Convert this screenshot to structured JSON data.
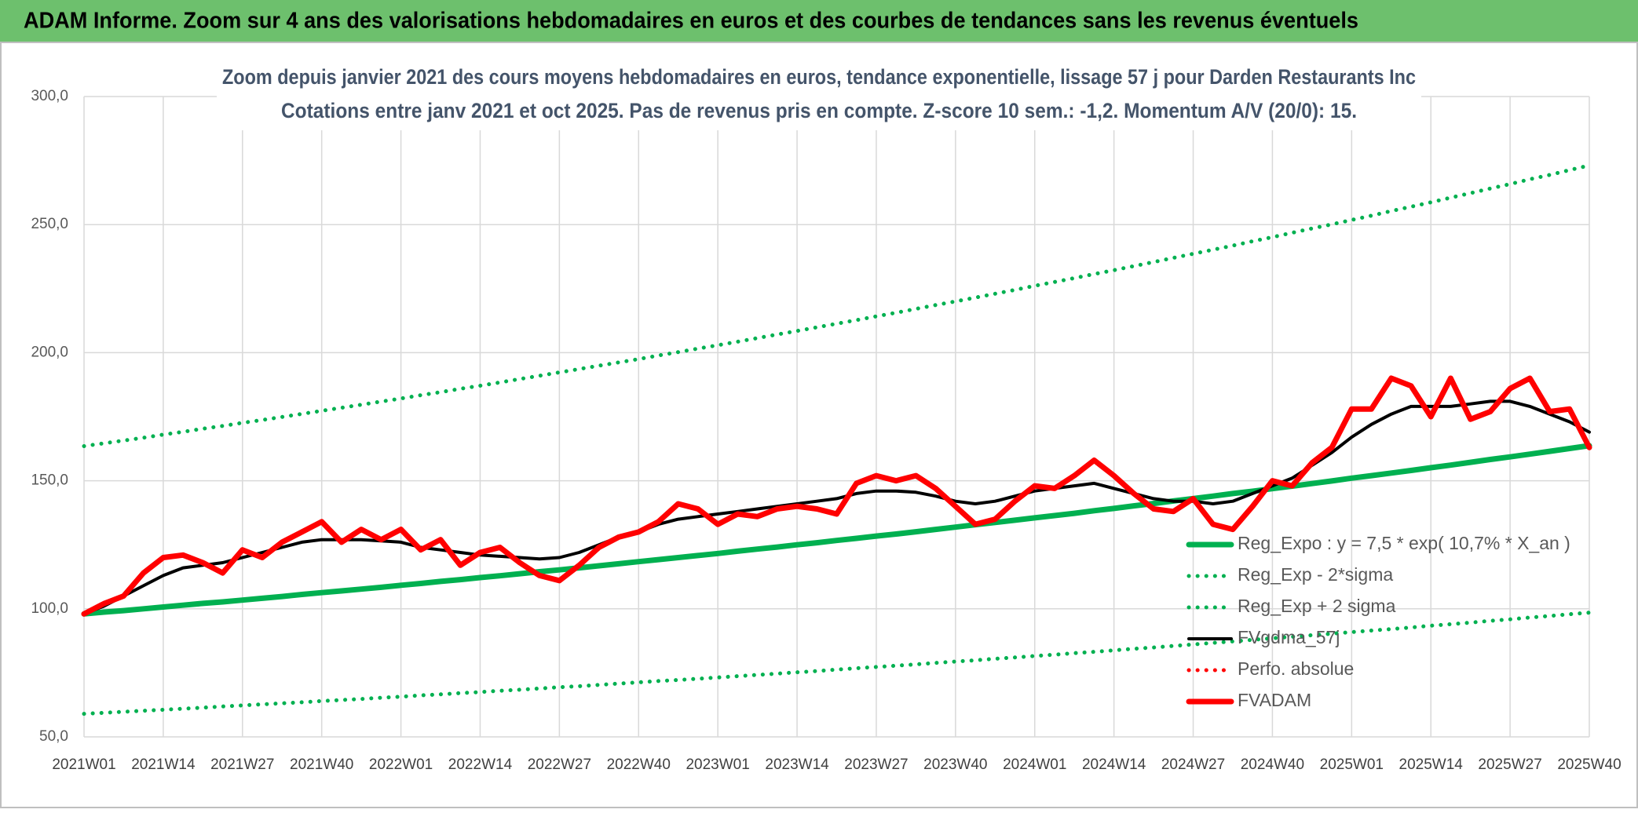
{
  "header": {
    "title": "ADAM Informe. Zoom sur 4 ans des valorisations hebdomadaires en euros et des courbes de tendances sans les revenus éventuels"
  },
  "chart_data": {
    "type": "line",
    "title": "Zoom depuis janvier 2021 des cours moyens hebdomadaires en euros, tendance exponentielle, lissage 57 j pour Darden Restaurants Inc",
    "subtitle": "Cotations entre janv 2021 et oct 2025. Pas de revenus pris en compte. Z-score 10 sem.: -1,2. Momentum A/V (20/0): 15.",
    "categories": [
      "2021W01",
      null,
      null,
      null,
      "2021W14",
      null,
      null,
      null,
      "2021W27",
      null,
      null,
      null,
      "2021W40",
      null,
      null,
      null,
      "2022W01",
      null,
      null,
      null,
      "2022W14",
      null,
      null,
      null,
      "2022W27",
      null,
      null,
      null,
      "2022W40",
      null,
      null,
      null,
      "2023W01",
      null,
      null,
      null,
      "2023W14",
      null,
      null,
      null,
      "2023W27",
      null,
      null,
      null,
      "2023W40",
      null,
      null,
      null,
      "2024W01",
      null,
      null,
      null,
      "2024W14",
      null,
      null,
      null,
      "2024W27",
      null,
      null,
      null,
      "2024W40",
      null,
      null,
      null,
      "2025W01",
      null,
      null,
      null,
      "2025W14",
      null,
      null,
      null,
      "2025W27",
      null,
      null,
      null,
      "2025W40"
    ],
    "ylim": [
      50,
      300
    ],
    "yticks": [
      {
        "value": 50,
        "label": "50,0"
      },
      {
        "value": 100,
        "label": "100,0"
      },
      {
        "value": 150,
        "label": "150,0"
      },
      {
        "value": 200,
        "label": "200,0"
      },
      {
        "value": 250,
        "label": "250,0"
      },
      {
        "value": 300,
        "label": "300,0"
      }
    ],
    "grid": true,
    "legend": "right",
    "series": [
      {
        "name": "Reg_Expo : y = 7,5 * exp( 10,7% *  X_an )",
        "color": "#00b050",
        "style": "solid",
        "values": [
          98.0,
          98.7,
          99.3,
          100.0,
          100.7,
          101.4,
          102.1,
          102.7,
          103.4,
          104.1,
          104.8,
          105.6,
          106.3,
          107.0,
          107.7,
          108.4,
          109.2,
          109.9,
          110.7,
          111.4,
          112.2,
          112.9,
          113.7,
          114.5,
          115.2,
          116.0,
          116.8,
          117.6,
          118.4,
          119.2,
          120.0,
          120.8,
          121.6,
          122.5,
          123.3,
          124.1,
          125.0,
          125.8,
          126.7,
          127.5,
          128.4,
          129.2,
          130.1,
          131.0,
          131.9,
          132.8,
          133.7,
          134.6,
          135.5,
          136.4,
          137.3,
          138.3,
          139.2,
          140.2,
          141.1,
          142.1,
          143.0,
          144.0,
          145.0,
          145.9,
          146.9,
          147.9,
          148.9,
          149.9,
          151.0,
          152.0,
          153.0,
          154.0,
          155.1,
          156.1,
          157.2,
          158.3,
          159.3,
          160.4,
          161.5,
          162.6,
          163.7
        ]
      },
      {
        "name": "Reg_Exp - 2*sigma",
        "color": "#00b050",
        "style": "dotted",
        "values": [
          59.0,
          59.4,
          59.8,
          60.2,
          60.6,
          61.0,
          61.4,
          61.9,
          62.3,
          62.7,
          63.1,
          63.5,
          64.0,
          64.4,
          64.8,
          65.3,
          65.7,
          66.2,
          66.6,
          67.1,
          67.5,
          68.0,
          68.4,
          68.9,
          69.4,
          69.8,
          70.3,
          70.8,
          71.3,
          71.8,
          72.2,
          72.7,
          73.2,
          73.7,
          74.2,
          74.7,
          75.2,
          75.7,
          76.3,
          76.8,
          77.3,
          77.8,
          78.3,
          78.9,
          79.4,
          79.9,
          80.5,
          81.0,
          81.6,
          82.1,
          82.7,
          83.2,
          83.8,
          84.4,
          84.9,
          85.5,
          86.1,
          86.7,
          87.3,
          87.9,
          88.5,
          89.1,
          89.7,
          90.3,
          90.9,
          91.5,
          92.1,
          92.7,
          93.4,
          94.0,
          94.6,
          95.3,
          95.9,
          96.6,
          97.2,
          97.9,
          98.5
        ]
      },
      {
        "name": "Reg_Exp + 2 sigma",
        "color": "#00b050",
        "style": "dotted",
        "values": [
          163.5,
          164.6,
          165.7,
          166.8,
          168.0,
          169.1,
          170.3,
          171.4,
          172.6,
          173.7,
          174.9,
          176.1,
          177.3,
          178.5,
          179.7,
          180.9,
          182.1,
          183.4,
          184.6,
          185.9,
          187.1,
          188.4,
          189.7,
          191.0,
          192.3,
          193.6,
          194.9,
          196.2,
          197.5,
          198.9,
          200.2,
          201.6,
          202.9,
          204.3,
          205.7,
          207.1,
          208.5,
          209.9,
          211.3,
          212.7,
          214.2,
          215.6,
          217.1,
          218.6,
          220.0,
          221.5,
          223.0,
          224.5,
          226.1,
          227.6,
          229.1,
          230.7,
          232.2,
          233.8,
          235.4,
          237.0,
          238.6,
          240.2,
          241.8,
          243.5,
          245.1,
          246.8,
          248.5,
          250.1,
          251.8,
          253.5,
          255.3,
          257.0,
          258.7,
          260.5,
          262.3,
          264.1,
          265.8,
          267.7,
          269.4,
          271.3,
          273.1
        ]
      },
      {
        "name": "FVgdma_57j",
        "color": "#000000",
        "style": "solid",
        "values": [
          98,
          101,
          105,
          109,
          113,
          116,
          117,
          118,
          120,
          122,
          124,
          126,
          127,
          127,
          127,
          126.5,
          126,
          124,
          123,
          122,
          121,
          120.5,
          120,
          119.5,
          120,
          122,
          125,
          128,
          130,
          133,
          135,
          136,
          137,
          138,
          139,
          140,
          141,
          142,
          143,
          145,
          146,
          146,
          145.5,
          144,
          142,
          141,
          142,
          144,
          146,
          147,
          148,
          149,
          147,
          145,
          143,
          142,
          142,
          141,
          142,
          145,
          148,
          151,
          156,
          161,
          167,
          172,
          176,
          179,
          179,
          179,
          180,
          181,
          181,
          179,
          176,
          173,
          169
        ]
      },
      {
        "name": "Perfo. absolue",
        "color": "#ff0000",
        "style": "dotted",
        "values": [
          null,
          null,
          null,
          null,
          null,
          null,
          null,
          null,
          null,
          null,
          null,
          null,
          null,
          null,
          null,
          null,
          null,
          null,
          null,
          null,
          null,
          null,
          null,
          null,
          null,
          null,
          null,
          null,
          null,
          null,
          null,
          null,
          null,
          null,
          null,
          null,
          null,
          null,
          null,
          null,
          null,
          null,
          null,
          null,
          null,
          null,
          null,
          null,
          null,
          null,
          null,
          null,
          null,
          null,
          null,
          null,
          null,
          null,
          null,
          null,
          null,
          null,
          null,
          null,
          null,
          null,
          null,
          null,
          null,
          null,
          null,
          null,
          null,
          null,
          null,
          null,
          null
        ]
      },
      {
        "name": "FVADAM",
        "color": "#ff0000",
        "style": "solid",
        "values": [
          98,
          102,
          105,
          114,
          120,
          121,
          118,
          114,
          123,
          120,
          126,
          130,
          134,
          126,
          131,
          127,
          131,
          123,
          127,
          117,
          122,
          124,
          118,
          113,
          111,
          117,
          124,
          128,
          130,
          134,
          141,
          139,
          133,
          137,
          136,
          139,
          140,
          139,
          137,
          149,
          152,
          150,
          152,
          147,
          140,
          133,
          135,
          142,
          148,
          147,
          152,
          158,
          152,
          145,
          139,
          138,
          143,
          133,
          131,
          140,
          150,
          148,
          157,
          163,
          178,
          178,
          190,
          187,
          175,
          190,
          174,
          177,
          186,
          190,
          177,
          178,
          163
        ]
      }
    ]
  }
}
